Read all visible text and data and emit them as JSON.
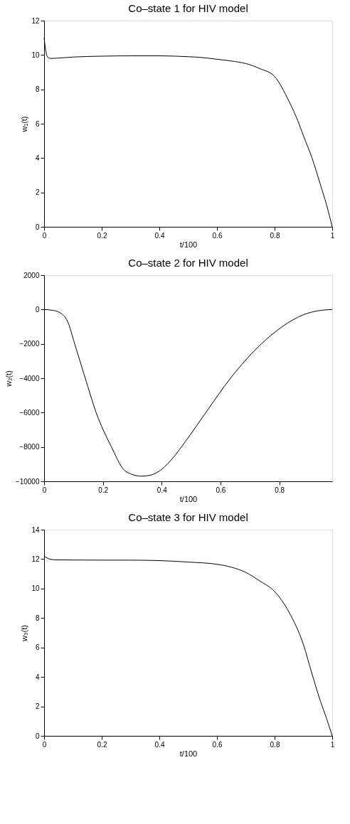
{
  "chart_data": [
    {
      "type": "line",
      "title": "Co–state 1 for HIV model",
      "xlabel": "t/100",
      "ylabel": "w₁(t)",
      "xlim": [
        0,
        1
      ],
      "ylim": [
        0,
        12
      ],
      "xticks": [
        0,
        0.2,
        0.4,
        0.6,
        0.8,
        1
      ],
      "yticks": [
        0,
        2,
        4,
        6,
        8,
        10,
        12
      ],
      "x": [
        0,
        0.01,
        0.02,
        0.05,
        0.1,
        0.2,
        0.3,
        0.4,
        0.5,
        0.55,
        0.6,
        0.65,
        0.7,
        0.75,
        0.8,
        0.85,
        0.88,
        0.9,
        0.93,
        0.96,
        0.98,
        1
      ],
      "series": [
        {
          "color": "#000000",
          "values": [
            11.0,
            9.95,
            9.8,
            9.82,
            9.88,
            9.93,
            9.95,
            9.95,
            9.9,
            9.85,
            9.75,
            9.65,
            9.5,
            9.2,
            8.75,
            7.3,
            6.2,
            5.3,
            4.0,
            2.4,
            1.3,
            0
          ]
        }
      ]
    },
    {
      "type": "line",
      "title": "Co–state 2 for HIV model",
      "xlabel": "t/100",
      "ylabel": "w₂(t)",
      "xlim": [
        0,
        0.98
      ],
      "ylim": [
        -10000,
        2000
      ],
      "xticks": [
        0,
        0.2,
        0.4,
        0.6,
        0.8
      ],
      "yticks": [
        -10000,
        -8000,
        -6000,
        -4000,
        -2000,
        0,
        2000
      ],
      "x": [
        0,
        0.03,
        0.05,
        0.08,
        0.104,
        0.14,
        0.177,
        0.229,
        0.27,
        0.3,
        0.33,
        0.36,
        0.4,
        0.44,
        0.48,
        0.55,
        0.634,
        0.739,
        0.81,
        0.883,
        0.93,
        0.98
      ],
      "series": [
        {
          "color": "#000000",
          "values": [
            0,
            -50,
            -150,
            -700,
            -2000,
            -4000,
            -6000,
            -8000,
            -9300,
            -9600,
            -9700,
            -9650,
            -9300,
            -8600,
            -7700,
            -6000,
            -4000,
            -2000,
            -1000,
            -300,
            -80,
            0
          ]
        }
      ]
    },
    {
      "type": "line",
      "title": "Co–state 3 for HIV model",
      "xlabel": "t/100",
      "ylabel": "w₃(t)",
      "xlim": [
        0,
        1
      ],
      "ylim": [
        0,
        14
      ],
      "xticks": [
        0,
        0.2,
        0.4,
        0.6,
        0.8,
        1
      ],
      "yticks": [
        0,
        2,
        4,
        6,
        8,
        10,
        12,
        14
      ],
      "x": [
        0,
        0.02,
        0.04,
        0.1,
        0.2,
        0.3,
        0.4,
        0.5,
        0.6,
        0.65,
        0.7,
        0.75,
        0.8,
        0.85,
        0.9,
        0.93,
        0.96,
        0.98,
        1
      ],
      "series": [
        {
          "color": "#000000",
          "values": [
            12.2,
            12.0,
            11.95,
            11.94,
            11.93,
            11.93,
            11.9,
            11.8,
            11.65,
            11.45,
            11.1,
            10.5,
            9.8,
            8.4,
            6.2,
            4.2,
            2.3,
            1.2,
            0
          ]
        }
      ]
    }
  ]
}
